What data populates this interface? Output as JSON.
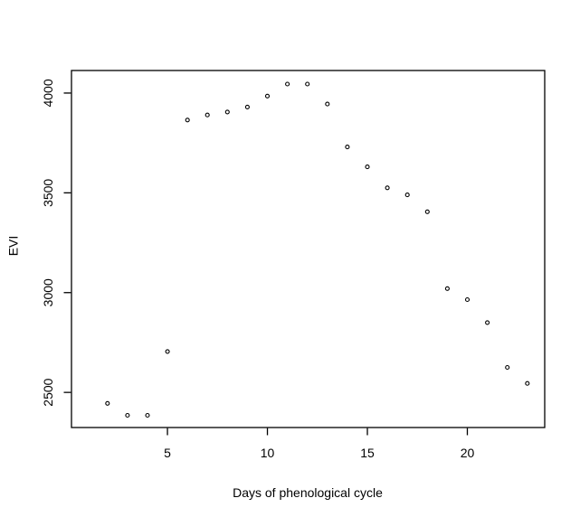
{
  "window": {
    "background": "#ffffff"
  },
  "chart_data": {
    "type": "scatter",
    "title": "",
    "xlabel": "Days of phenological cycle",
    "ylabel": "EVI",
    "x": [
      2,
      3,
      4,
      5,
      6,
      7,
      8,
      9,
      10,
      11,
      12,
      13,
      14,
      15,
      16,
      17,
      18,
      19,
      20,
      21,
      22,
      23
    ],
    "y": [
      2445,
      2385,
      2385,
      2705,
      3865,
      3890,
      3905,
      3930,
      3985,
      4045,
      4045,
      3945,
      3730,
      3630,
      3525,
      3490,
      3405,
      3020,
      2965,
      2850,
      2625,
      2545
    ],
    "x_ticks": [
      5,
      10,
      15,
      20
    ],
    "y_ticks": [
      2500,
      3000,
      3500,
      4000
    ],
    "xlim": [
      0.2,
      23.87
    ],
    "ylim": [
      2324,
      4113
    ],
    "grid": false,
    "legend": false,
    "marker": "open-circle",
    "marker_color": "#000000",
    "axis_color": "#000000",
    "background": "#ffffff"
  }
}
